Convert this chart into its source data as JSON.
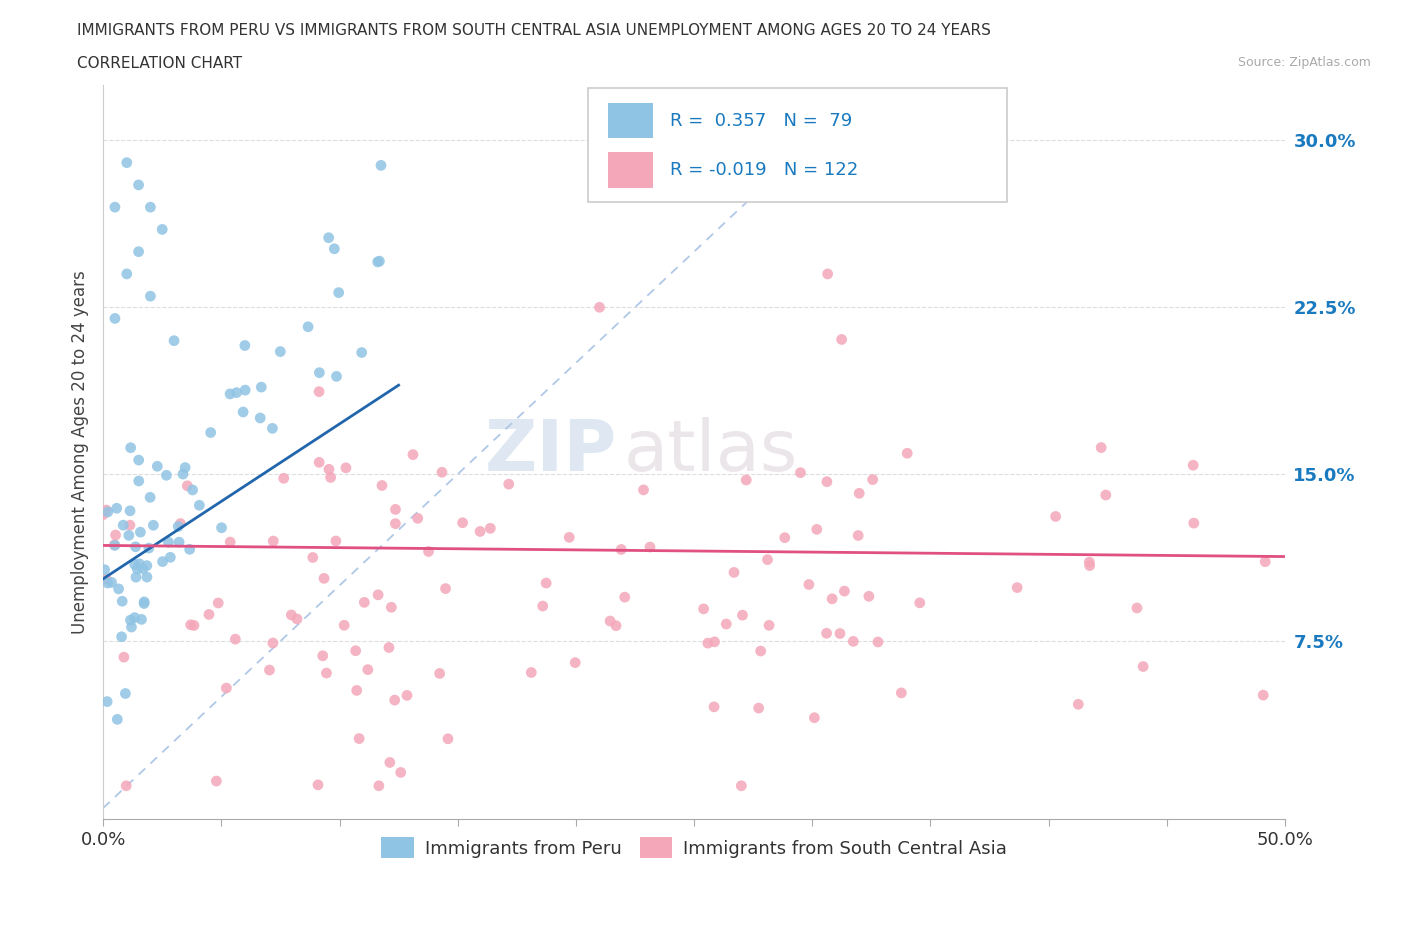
{
  "title_line1": "IMMIGRANTS FROM PERU VS IMMIGRANTS FROM SOUTH CENTRAL ASIA UNEMPLOYMENT AMONG AGES 20 TO 24 YEARS",
  "title_line2": "CORRELATION CHART",
  "source_text": "Source: ZipAtlas.com",
  "ylabel": "Unemployment Among Ages 20 to 24 years",
  "xlim": [
    0.0,
    0.5
  ],
  "ylim": [
    -0.005,
    0.325
  ],
  "yticks_right": [
    0.075,
    0.15,
    0.225,
    0.3
  ],
  "ytick_labels_right": [
    "7.5%",
    "15.0%",
    "22.5%",
    "30.0%"
  ],
  "peru_R": 0.357,
  "peru_N": 79,
  "asia_R": -0.019,
  "asia_N": 122,
  "peru_color": "#90c4e4",
  "asia_color": "#f4a7b9",
  "peru_trend_color": "#2166ac",
  "asia_trend_color": "#e05080",
  "diag_line_color": "#b0c8e8",
  "legend_peru": "Immigrants from Peru",
  "legend_asia": "Immigrants from South Central Asia",
  "watermark_zip": "ZIP",
  "watermark_atlas": "atlas"
}
